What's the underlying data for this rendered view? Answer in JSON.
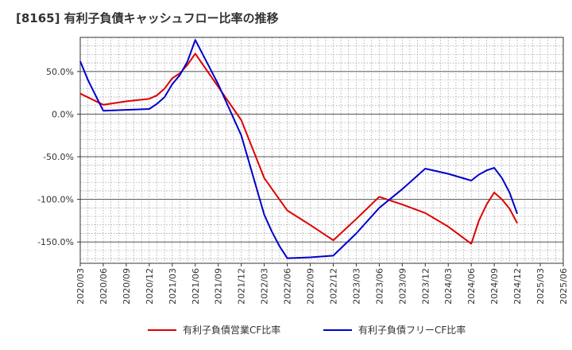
{
  "chart_data": {
    "type": "line",
    "title": "[8165]  有利子負債キャッシュフロー比率の推移",
    "xlabel": "",
    "ylabel": "",
    "ylim": [
      -175,
      90
    ],
    "y_ticks": [
      50,
      0,
      -50,
      -100,
      -150
    ],
    "y_tick_labels": [
      "50.0%",
      "0.0%",
      "-50.0%",
      "-100.0%",
      "-150.0%"
    ],
    "x_ticks": [
      "2020/03",
      "2020/06",
      "2020/09",
      "2020/12",
      "2021/03",
      "2021/06",
      "2021/09",
      "2021/12",
      "2022/03",
      "2022/06",
      "2022/09",
      "2022/12",
      "2023/03",
      "2023/06",
      "2023/09",
      "2023/12",
      "2024/03",
      "2024/06",
      "2024/09",
      "2024/12",
      "2025/03",
      "2025/06"
    ],
    "grid": true,
    "legend_position": "bottom",
    "series": [
      {
        "name": "有利子負債営業CF比率",
        "color": "#dd0000",
        "points": [
          [
            "2020/03",
            24
          ],
          [
            "2020/06",
            11
          ],
          [
            "2020/09",
            15
          ],
          [
            "2020/12",
            18
          ],
          [
            "2021/01",
            22
          ],
          [
            "2021/02",
            30
          ],
          [
            "2021/03",
            42
          ],
          [
            "2021/04",
            48
          ],
          [
            "2021/05",
            58
          ],
          [
            "2021/06",
            71
          ],
          [
            "2021/09",
            32
          ],
          [
            "2021/12",
            -7
          ],
          [
            "2022/03",
            -75
          ],
          [
            "2022/06",
            -113
          ],
          [
            "2022/09",
            -130
          ],
          [
            "2022/12",
            -148
          ],
          [
            "2023/03",
            -123
          ],
          [
            "2023/06",
            -97
          ],
          [
            "2023/09",
            -106
          ],
          [
            "2023/12",
            -116
          ],
          [
            "2024/03",
            -132
          ],
          [
            "2024/06",
            -152
          ],
          [
            "2024/07",
            -125
          ],
          [
            "2024/08",
            -106
          ],
          [
            "2024/09",
            -92
          ],
          [
            "2024/10",
            -100
          ],
          [
            "2024/11",
            -111
          ],
          [
            "2024/12",
            -128
          ]
        ]
      },
      {
        "name": "有利子負債フリーCF比率",
        "color": "#0000cc",
        "points": [
          [
            "2020/03",
            62
          ],
          [
            "2020/04",
            40
          ],
          [
            "2020/05",
            22
          ],
          [
            "2020/06",
            4
          ],
          [
            "2020/09",
            5
          ],
          [
            "2020/12",
            6
          ],
          [
            "2021/01",
            12
          ],
          [
            "2021/02",
            20
          ],
          [
            "2021/03",
            35
          ],
          [
            "2021/04",
            46
          ],
          [
            "2021/05",
            62
          ],
          [
            "2021/06",
            87
          ],
          [
            "2021/09",
            35
          ],
          [
            "2021/12",
            -25
          ],
          [
            "2022/03",
            -118
          ],
          [
            "2022/04",
            -138
          ],
          [
            "2022/05",
            -155
          ],
          [
            "2022/06",
            -169
          ],
          [
            "2022/09",
            -168
          ],
          [
            "2022/12",
            -166
          ],
          [
            "2023/03",
            -140
          ],
          [
            "2023/06",
            -110
          ],
          [
            "2023/09",
            -88
          ],
          [
            "2023/12",
            -64
          ],
          [
            "2024/03",
            -70
          ],
          [
            "2024/06",
            -78
          ],
          [
            "2024/07",
            -71
          ],
          [
            "2024/08",
            -66
          ],
          [
            "2024/09",
            -63
          ],
          [
            "2024/10",
            -75
          ],
          [
            "2024/11",
            -92
          ],
          [
            "2024/12",
            -117
          ]
        ]
      }
    ]
  }
}
